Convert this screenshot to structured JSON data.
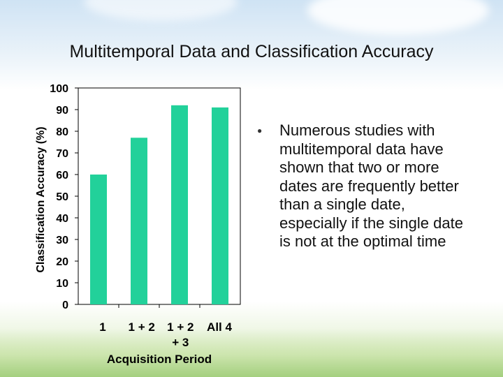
{
  "slide": {
    "title": "Multitemporal Data and Classification Accuracy",
    "bullet": "Numerous studies with multitemporal data have shown that two or more dates are frequently better than a single date, especially if the single date is not at the optimal time"
  },
  "chart_data": {
    "type": "bar",
    "categories": [
      "1",
      "1 + 2",
      "1 + 2 + 3",
      "All 4"
    ],
    "category_lines": [
      [
        "1"
      ],
      [
        "1 + 2"
      ],
      [
        "1 + 2",
        "+ 3"
      ],
      [
        "All 4"
      ]
    ],
    "values": [
      60,
      77,
      92,
      91
    ],
    "xlabel": "Acquisition Period",
    "ylabel": "Classification Accuracy (%)",
    "ylim": [
      0,
      100
    ],
    "yticks": [
      0,
      10,
      20,
      30,
      40,
      50,
      60,
      70,
      80,
      90,
      100
    ],
    "bar_color": "#22d19a",
    "grid": false,
    "legend": "none"
  }
}
